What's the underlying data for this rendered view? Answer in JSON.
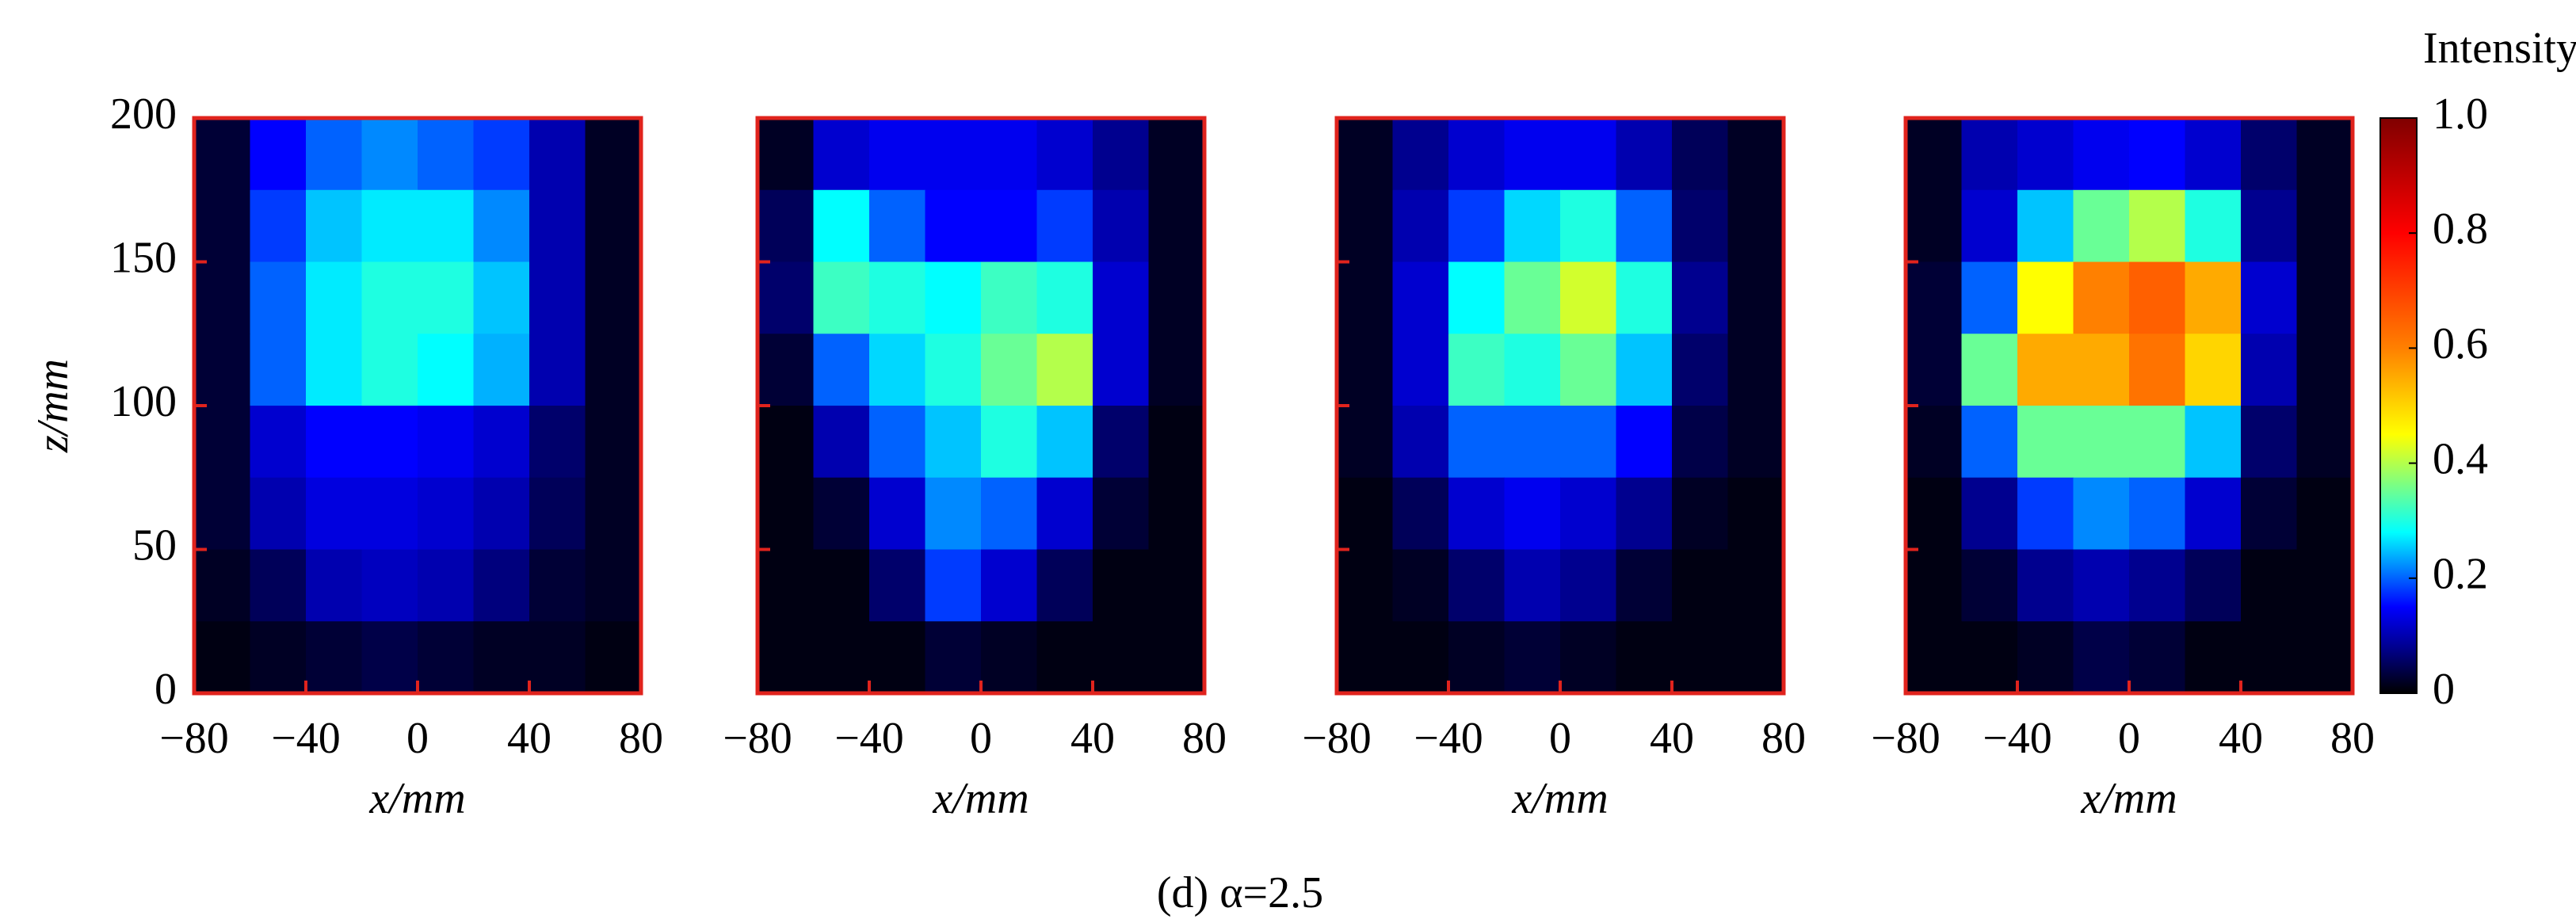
{
  "chart_data": [
    {
      "type": "heatmap",
      "xlabel": "x/mm",
      "ylabel": "z/mm",
      "show_ytick_labels": true,
      "frame_color": "#e0231d",
      "x": [
        -70,
        -50,
        -30,
        -10,
        10,
        30,
        50,
        70
      ],
      "y": [
        187.5,
        162.5,
        137.5,
        112.5,
        87.5,
        62.5,
        37.5,
        12.5
      ],
      "xlim": [
        -80,
        80
      ],
      "ylim": [
        0,
        200
      ],
      "xticks": [
        {
          "value": -80,
          "label": "−80"
        },
        {
          "value": -40,
          "label": "−40"
        },
        0,
        40,
        80
      ],
      "yticks": [
        0,
        50,
        100,
        150,
        200
      ],
      "values": [
        [
          0.03,
          0.15,
          0.2,
          0.22,
          0.2,
          0.18,
          0.1,
          0.02
        ],
        [
          0.03,
          0.18,
          0.25,
          0.27,
          0.27,
          0.22,
          0.1,
          0.02
        ],
        [
          0.03,
          0.2,
          0.27,
          0.3,
          0.3,
          0.25,
          0.1,
          0.02
        ],
        [
          0.03,
          0.2,
          0.27,
          0.3,
          0.28,
          0.24,
          0.1,
          0.02
        ],
        [
          0.03,
          0.12,
          0.15,
          0.15,
          0.14,
          0.12,
          0.06,
          0.02
        ],
        [
          0.03,
          0.1,
          0.13,
          0.13,
          0.12,
          0.1,
          0.05,
          0.02
        ],
        [
          0.02,
          0.05,
          0.1,
          0.11,
          0.1,
          0.07,
          0.03,
          0.02
        ],
        [
          0.01,
          0.02,
          0.03,
          0.04,
          0.03,
          0.02,
          0.02,
          0.01
        ]
      ]
    },
    {
      "type": "heatmap",
      "xlabel": "x/mm",
      "show_ytick_labels": false,
      "frame_color": "#e0231d",
      "x": [
        -70,
        -50,
        -30,
        -10,
        10,
        30,
        50,
        70
      ],
      "y": [
        187.5,
        162.5,
        137.5,
        112.5,
        87.5,
        62.5,
        37.5,
        12.5
      ],
      "xlim": [
        -80,
        80
      ],
      "ylim": [
        0,
        200
      ],
      "xticks": [
        {
          "value": -80,
          "label": "−80"
        },
        {
          "value": -40,
          "label": "−40"
        },
        0,
        40,
        80
      ],
      "yticks": [
        0,
        50,
        100,
        150,
        200
      ],
      "values": [
        [
          0.02,
          0.12,
          0.14,
          0.14,
          0.14,
          0.12,
          0.08,
          0.02
        ],
        [
          0.05,
          0.28,
          0.2,
          0.15,
          0.15,
          0.18,
          0.1,
          0.02
        ],
        [
          0.06,
          0.32,
          0.3,
          0.28,
          0.32,
          0.3,
          0.12,
          0.02
        ],
        [
          0.03,
          0.2,
          0.26,
          0.3,
          0.35,
          0.4,
          0.12,
          0.02
        ],
        [
          0.01,
          0.1,
          0.2,
          0.25,
          0.3,
          0.25,
          0.06,
          0.01
        ],
        [
          0.01,
          0.03,
          0.12,
          0.22,
          0.2,
          0.12,
          0.03,
          0.01
        ],
        [
          0.01,
          0.01,
          0.06,
          0.18,
          0.12,
          0.05,
          0.01,
          0.01
        ],
        [
          0.01,
          0.01,
          0.01,
          0.03,
          0.02,
          0.01,
          0.01,
          0.01
        ]
      ]
    },
    {
      "type": "heatmap",
      "xlabel": "x/mm",
      "show_ytick_labels": false,
      "frame_color": "#e0231d",
      "x": [
        -70,
        -50,
        -30,
        -10,
        10,
        30,
        50,
        70
      ],
      "y": [
        187.5,
        162.5,
        137.5,
        112.5,
        87.5,
        62.5,
        37.5,
        12.5
      ],
      "xlim": [
        -80,
        80
      ],
      "ylim": [
        0,
        200
      ],
      "xticks": [
        {
          "value": -80,
          "label": "−80"
        },
        {
          "value": -40,
          "label": "−40"
        },
        0,
        40,
        80
      ],
      "yticks": [
        0,
        50,
        100,
        150,
        200
      ],
      "values": [
        [
          0.02,
          0.08,
          0.12,
          0.14,
          0.14,
          0.1,
          0.05,
          0.02
        ],
        [
          0.02,
          0.1,
          0.18,
          0.26,
          0.3,
          0.2,
          0.06,
          0.02
        ],
        [
          0.02,
          0.12,
          0.28,
          0.35,
          0.42,
          0.3,
          0.08,
          0.02
        ],
        [
          0.02,
          0.12,
          0.32,
          0.3,
          0.35,
          0.25,
          0.06,
          0.02
        ],
        [
          0.02,
          0.1,
          0.2,
          0.2,
          0.2,
          0.15,
          0.04,
          0.02
        ],
        [
          0.01,
          0.05,
          0.12,
          0.14,
          0.12,
          0.08,
          0.02,
          0.01
        ],
        [
          0.01,
          0.02,
          0.06,
          0.1,
          0.08,
          0.03,
          0.01,
          0.01
        ],
        [
          0.01,
          0.01,
          0.02,
          0.03,
          0.02,
          0.01,
          0.01,
          0.01
        ]
      ]
    },
    {
      "type": "heatmap",
      "xlabel": "x/mm",
      "show_ytick_labels": false,
      "frame_color": "#e0231d",
      "x": [
        -70,
        -50,
        -30,
        -10,
        10,
        30,
        50,
        70
      ],
      "y": [
        187.5,
        162.5,
        137.5,
        112.5,
        87.5,
        62.5,
        37.5,
        12.5
      ],
      "xlim": [
        -80,
        80
      ],
      "ylim": [
        0,
        200
      ],
      "xticks": [
        {
          "value": -80,
          "label": "−80"
        },
        {
          "value": -40,
          "label": "−40"
        },
        0,
        40,
        80
      ],
      "yticks": [
        0,
        50,
        100,
        150,
        200
      ],
      "values": [
        [
          0.02,
          0.1,
          0.12,
          0.14,
          0.15,
          0.12,
          0.06,
          0.02
        ],
        [
          0.02,
          0.12,
          0.25,
          0.35,
          0.4,
          0.3,
          0.08,
          0.02
        ],
        [
          0.03,
          0.2,
          0.45,
          0.6,
          0.65,
          0.55,
          0.12,
          0.02
        ],
        [
          0.03,
          0.35,
          0.55,
          0.55,
          0.62,
          0.5,
          0.1,
          0.02
        ],
        [
          0.02,
          0.2,
          0.35,
          0.35,
          0.35,
          0.25,
          0.06,
          0.02
        ],
        [
          0.01,
          0.08,
          0.18,
          0.22,
          0.2,
          0.12,
          0.03,
          0.01
        ],
        [
          0.01,
          0.03,
          0.08,
          0.1,
          0.08,
          0.05,
          0.01,
          0.01
        ],
        [
          0.01,
          0.01,
          0.02,
          0.04,
          0.03,
          0.01,
          0.01,
          0.01
        ]
      ]
    }
  ],
  "colorbar": {
    "label": "Intensity/(a.u.)",
    "clim": [
      0,
      1
    ],
    "ticks": [
      0,
      0.2,
      0.4,
      0.6,
      0.8,
      {
        "value": 1,
        "label": "1.0"
      }
    ]
  },
  "caption": "(d) α=2.5"
}
